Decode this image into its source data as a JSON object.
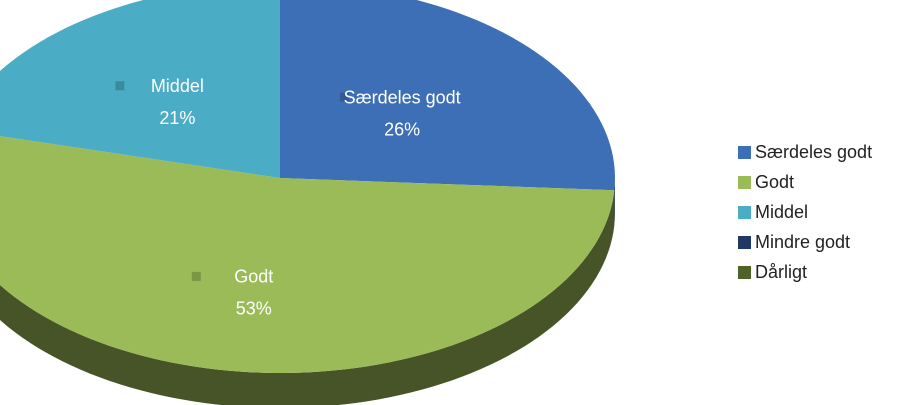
{
  "chart_data": {
    "type": "pie",
    "categories": [
      "Særdeles godt",
      "Godt",
      "Middel",
      "Mindre godt",
      "Dårligt"
    ],
    "values": [
      26,
      53,
      21,
      0,
      0
    ],
    "value_labels": [
      "26%",
      "53%",
      "21%",
      null,
      null
    ],
    "colors": [
      "#3d6fb6",
      "#9bbb59",
      "#4bacc6",
      "#1f3864",
      "#4f6228"
    ],
    "legend": "right"
  }
}
